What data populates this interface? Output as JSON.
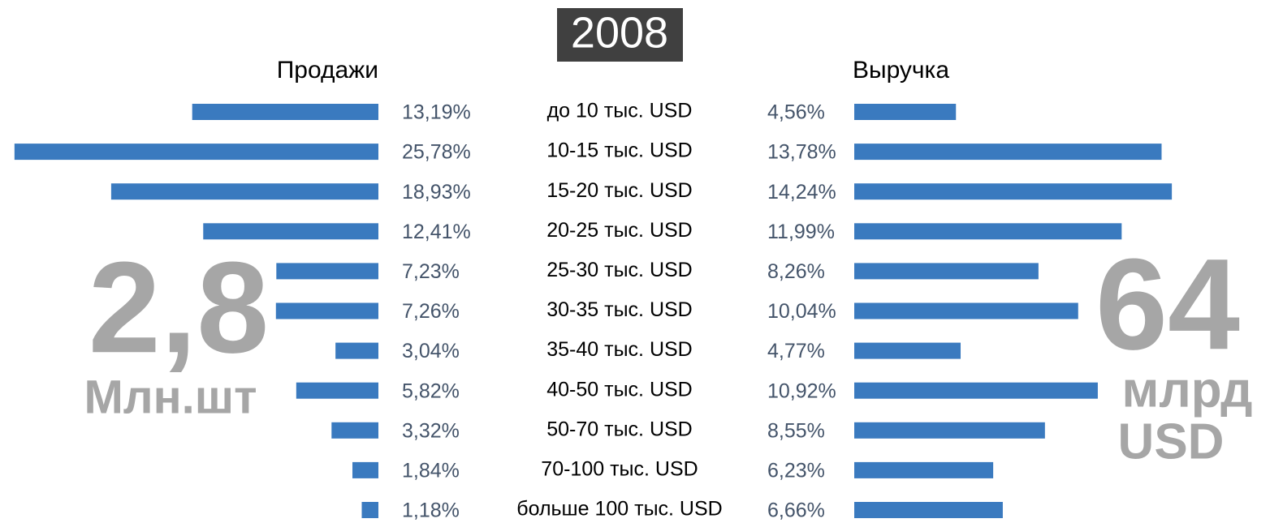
{
  "chart_data": {
    "type": "bar",
    "orientation": "horizontal",
    "title": "2008",
    "categories": [
      "до 10  тыс. USD",
      "10-15 тыс. USD",
      "15-20 тыс. USD",
      "20-25 тыс. USD",
      "25-30 тыс. USD",
      "30-35 тыс. USD",
      "35-40 тыс. USD",
      "40-50 тыс. USD",
      "50-70 тыс. USD",
      "70-100 тыс. USD",
      "больше 100 тыс. USD"
    ],
    "series": [
      {
        "name": "Продажи",
        "color": "#3a7abf",
        "xlim": [
          0,
          26
        ],
        "values": [
          13.19,
          25.78,
          18.93,
          12.41,
          7.23,
          7.26,
          3.04,
          5.82,
          3.32,
          1.84,
          1.18
        ],
        "value_labels": [
          "13,19%",
          "25,78%",
          "18,93%",
          "12,41%",
          "7,23%",
          "7,26%",
          "3,04%",
          "5,82%",
          "3,32%",
          "1,84%",
          "1,18%"
        ]
      },
      {
        "name": "Выручка",
        "color": "#3a7abf",
        "xlim": [
          0,
          15
        ],
        "values": [
          4.56,
          13.78,
          14.24,
          11.99,
          8.26,
          10.04,
          4.77,
          10.92,
          8.55,
          6.23,
          6.66
        ],
        "value_labels": [
          "4,56%",
          "13,78%",
          "14,24%",
          "11,99%",
          "8,26%",
          "10,04%",
          "4,77%",
          "10,92%",
          "8,55%",
          "6,23%",
          "6,66%"
        ]
      }
    ],
    "annotations": [
      "2,8",
      "Млн.шт",
      "64",
      "млрд",
      "USD"
    ]
  }
}
